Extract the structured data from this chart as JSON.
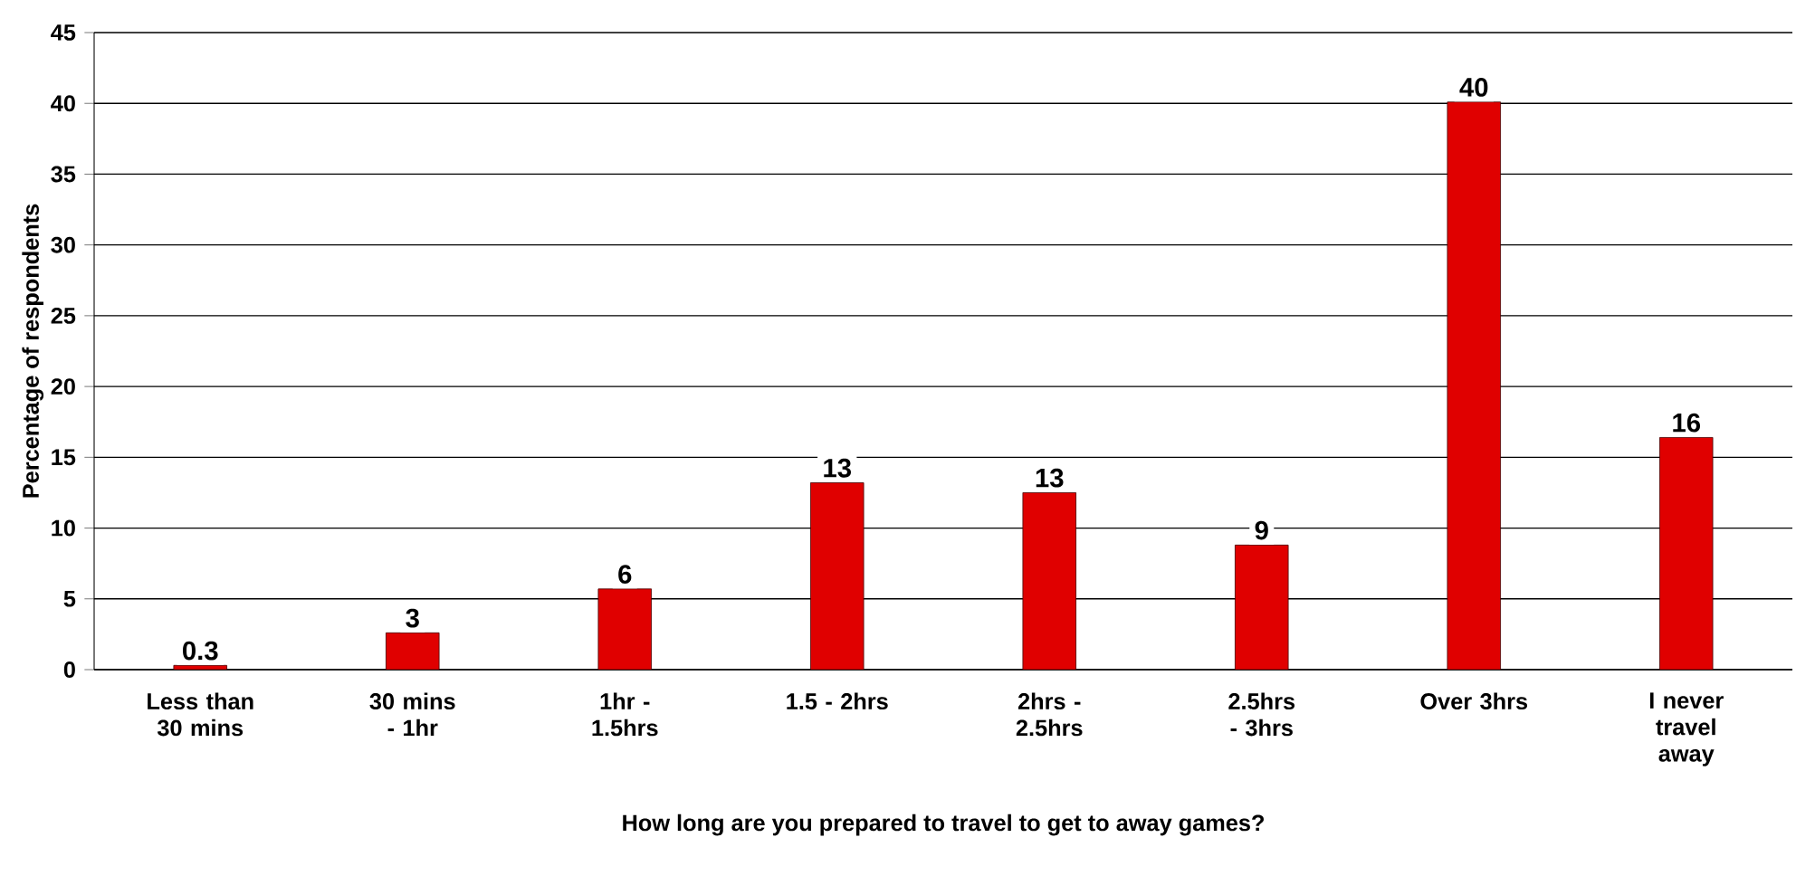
{
  "chart_data": {
    "type": "bar",
    "xlabel": "How long are you prepared to travel to get to away games?",
    "ylabel": "Percentage of respondents",
    "categories": [
      "Less than 30 mins",
      "30 mins - 1hr",
      "1hr - 1.5hrs",
      "1.5 - 2hrs",
      "2hrs - 2.5hrs",
      "2.5hrs - 3hrs",
      "Over 3hrs",
      "I never travel away"
    ],
    "values": [
      0.3,
      2.6,
      5.7,
      13.2,
      12.5,
      8.8,
      40.1,
      16.4
    ],
    "value_labels": [
      "0.3",
      "3",
      "6",
      "13",
      "13",
      "9",
      "40",
      "16"
    ],
    "color": "#e00000",
    "ylim": [
      0,
      45
    ],
    "yticks": [
      0,
      5,
      10,
      15,
      20,
      25,
      30,
      35,
      40,
      45
    ],
    "grid": "y"
  }
}
